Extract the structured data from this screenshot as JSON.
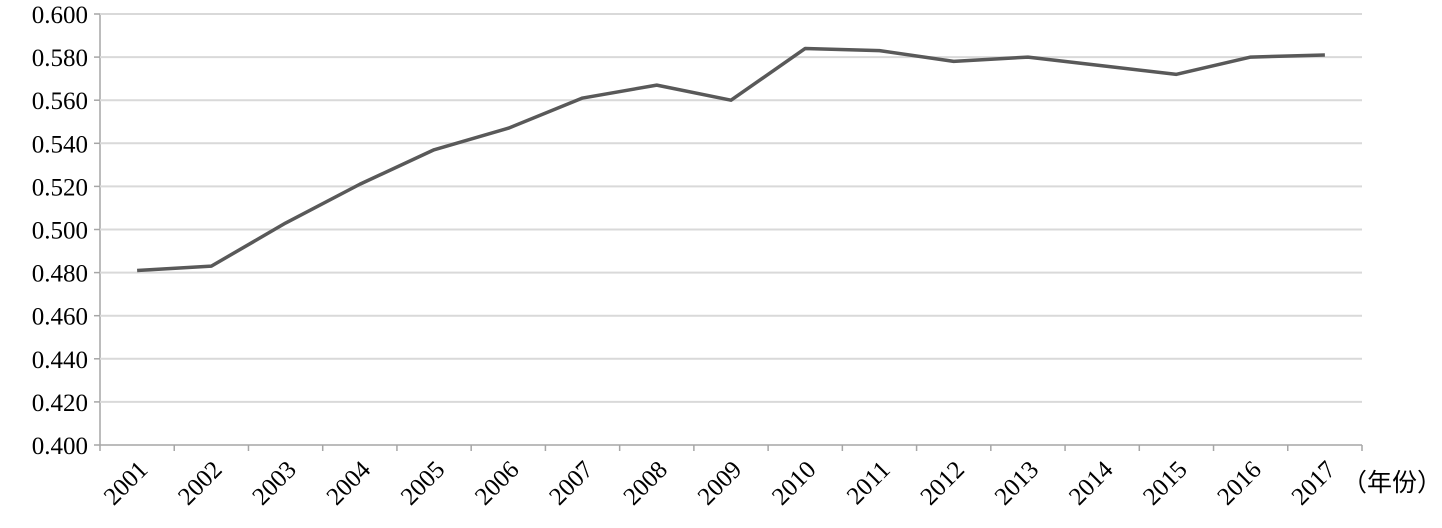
{
  "chart_data": {
    "type": "line",
    "categories": [
      "2001",
      "2002",
      "2003",
      "2004",
      "2005",
      "2006",
      "2007",
      "2008",
      "2009",
      "2010",
      "2011",
      "2012",
      "2013",
      "2014",
      "2015",
      "2016",
      "2017"
    ],
    "x_label": "（年份）",
    "series": [
      {
        "color": "#595959",
        "values": [
          0.481,
          0.483,
          0.503,
          0.521,
          0.537,
          0.547,
          0.561,
          0.567,
          0.56,
          0.584,
          0.583,
          0.578,
          0.58,
          0.576,
          0.572,
          0.58,
          0.581
        ]
      }
    ],
    "ylim": [
      0.4,
      0.6
    ],
    "yticks": [
      {
        "value": 0.4,
        "label": "0.400"
      },
      {
        "value": 0.42,
        "label": "0.420"
      },
      {
        "value": 0.44,
        "label": "0.440"
      },
      {
        "value": 0.46,
        "label": "0.460"
      },
      {
        "value": 0.48,
        "label": "0.480"
      },
      {
        "value": 0.5,
        "label": "0.500"
      },
      {
        "value": 0.52,
        "label": "0.520"
      },
      {
        "value": 0.54,
        "label": "0.540"
      },
      {
        "value": 0.56,
        "label": "0.560"
      },
      {
        "value": 0.58,
        "label": "0.580"
      },
      {
        "value": 0.6,
        "label": "0.600"
      }
    ],
    "grid": true
  }
}
